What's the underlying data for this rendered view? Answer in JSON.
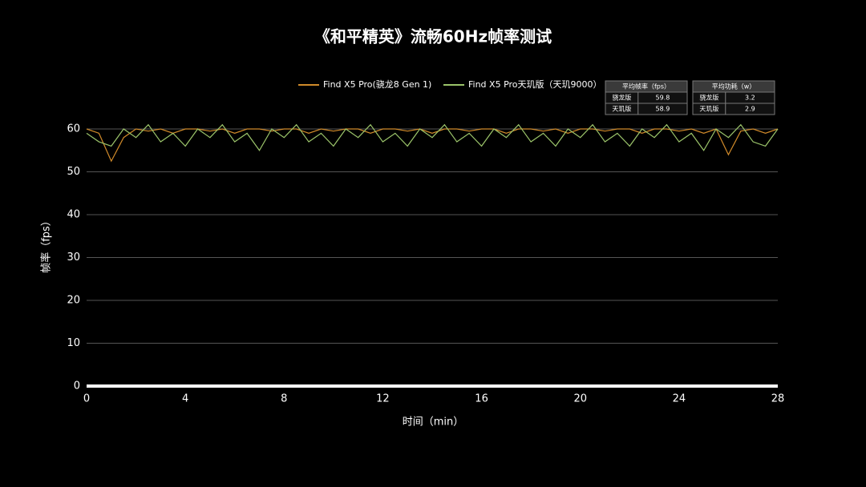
{
  "chart_data": {
    "type": "line",
    "title": "《和平精英》流畅60Hz帧率测试",
    "xlabel": "时间（min）",
    "ylabel": "帧率（fps）",
    "x": [
      0,
      0.5,
      1,
      1.5,
      2,
      2.5,
      3,
      3.5,
      4,
      4.5,
      5,
      5.5,
      6,
      6.5,
      7,
      7.5,
      8,
      8.5,
      9,
      9.5,
      10,
      10.5,
      11,
      11.5,
      12,
      12.5,
      13,
      13.5,
      14,
      14.5,
      15,
      15.5,
      16,
      16.5,
      17,
      17.5,
      18,
      18.5,
      19,
      19.5,
      20,
      20.5,
      21,
      21.5,
      22,
      22.5,
      23,
      23.5,
      24,
      24.5,
      25,
      25.5,
      26,
      26.5,
      27,
      27.5,
      28
    ],
    "series": [
      {
        "name": "Find X5 Pro(骁龙8 Gen 1)",
        "color": "#d08a2a",
        "values": [
          60,
          59,
          52.5,
          58,
          60,
          59.5,
          60,
          59,
          60,
          60,
          59.5,
          60,
          59,
          60,
          60,
          59.5,
          60,
          60,
          59,
          60,
          59.5,
          60,
          60,
          59,
          60,
          60,
          59.5,
          60,
          59,
          60,
          60,
          59.5,
          60,
          60,
          59,
          60,
          60,
          59.5,
          60,
          59,
          60,
          60,
          59.5,
          60,
          60,
          59,
          60,
          60,
          59.5,
          60,
          59,
          60,
          54,
          59.5,
          60,
          59,
          60
        ]
      },
      {
        "name": "Find X5 Pro天玑版（天玑9000）",
        "color": "#9bc46a",
        "values": [
          59,
          57,
          56,
          60,
          58,
          61,
          57,
          59,
          56,
          60,
          58,
          61,
          57,
          59,
          55,
          60,
          58,
          61,
          57,
          59,
          56,
          60,
          58,
          61,
          57,
          59,
          56,
          60,
          58,
          61,
          57,
          59,
          56,
          60,
          58,
          61,
          57,
          59,
          56,
          60,
          58,
          61,
          57,
          59,
          56,
          60,
          58,
          61,
          57,
          59,
          55,
          60,
          58,
          61,
          57,
          56,
          60
        ]
      }
    ],
    "xlim": [
      0,
      28
    ],
    "xticks": [
      0,
      4,
      8,
      12,
      16,
      20,
      24,
      28
    ],
    "ylim": [
      0,
      60
    ],
    "yticks": [
      0,
      10,
      20,
      30,
      40,
      50,
      60
    ],
    "grid": true,
    "tables": [
      {
        "header": "平均帧率（fps）",
        "rows": [
          [
            "骁龙版",
            59.8
          ],
          [
            "天玑版",
            58.9
          ]
        ]
      },
      {
        "header": "平均功耗（w）",
        "rows": [
          [
            "骁龙版",
            3.2
          ],
          [
            "天玑版",
            2.9
          ]
        ]
      }
    ]
  }
}
